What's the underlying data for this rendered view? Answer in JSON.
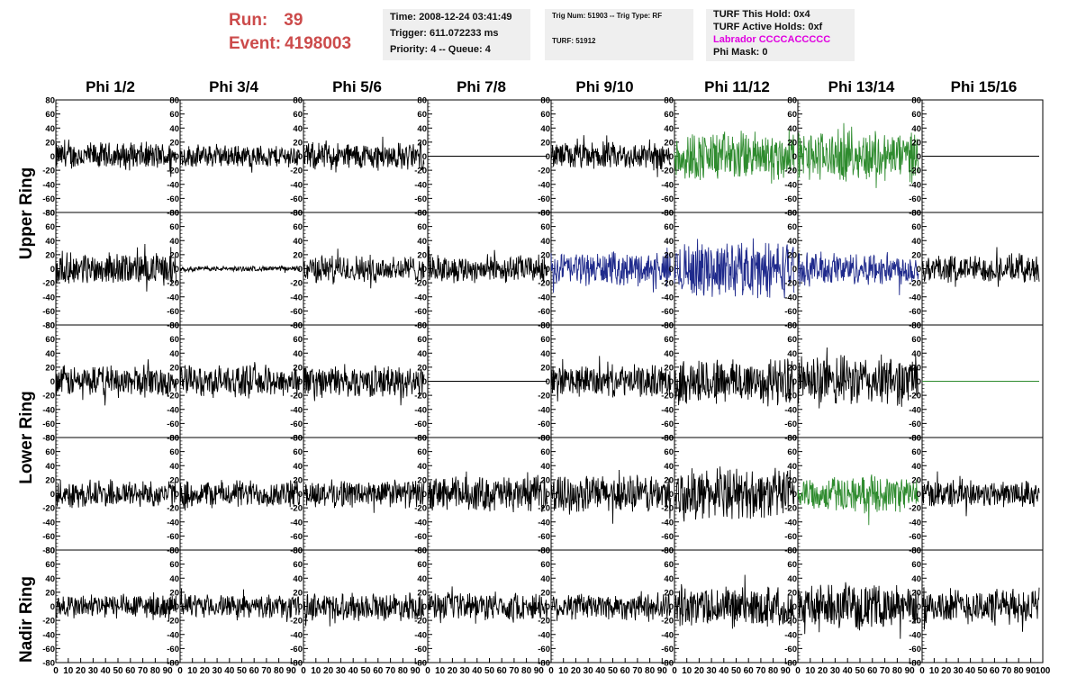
{
  "header": {
    "run_label": "Run:",
    "run_value": "39",
    "event_label": "Event:",
    "event_value": "4198003"
  },
  "box1": {
    "time": "Time: 2008-12-24 03:41:49",
    "trigger": "Trigger: 611.072233 ms",
    "priority": "Priority: 4 -- Queue: 4"
  },
  "box2": {
    "trig": "Trig Num: 51903 -- Trig Type: RF",
    "turf": "TURF: 51912"
  },
  "box3": {
    "hold": "TURF This Hold: 0x4",
    "active": "TURF Active Holds: 0xf",
    "labrador": "Labrador CCCCACCCCC",
    "phimask": "Phi Mask: 0"
  },
  "columns": [
    "Phi 1/2",
    "Phi 3/4",
    "Phi 5/6",
    "Phi 7/8",
    "Phi 9/10",
    "Phi 11/12",
    "Phi 13/14",
    "Phi 15/16"
  ],
  "ring_labels": {
    "upper": "Upper Ring",
    "lower": "Lower Ring",
    "nadir": "Nadir Ring"
  },
  "colors": {
    "run_text": "#cc4b4b",
    "box_bg": "#efefef",
    "labrador": "#e000e0",
    "trace_black": "#000000",
    "trace_green": "#2e8b2e",
    "trace_blue": "#1f2a8c"
  },
  "chart_data": {
    "type": "line",
    "xlim": [
      0,
      100
    ],
    "ylim": [
      -80,
      80
    ],
    "y_ticks": [
      80,
      60,
      40,
      20,
      0,
      -20,
      -40,
      -60,
      -80
    ],
    "x_ticks": [
      0,
      10,
      20,
      30,
      40,
      50,
      60,
      70,
      80,
      90,
      100
    ],
    "panels": [
      [
        {
          "color": "black",
          "amp": 22
        },
        {
          "color": "black",
          "amp": 18
        },
        {
          "color": "black",
          "amp": 22
        },
        {
          "color": "black",
          "amp": 0
        },
        {
          "color": "black",
          "amp": 22
        },
        {
          "color": "green",
          "amp": 40
        },
        {
          "color": "green",
          "amp": 40
        },
        {
          "color": "black",
          "amp": 0
        }
      ],
      [
        {
          "color": "black",
          "amp": 25
        },
        {
          "color": "black",
          "amp": 4
        },
        {
          "color": "black",
          "amp": 22
        },
        {
          "color": "black",
          "amp": 22
        },
        {
          "color": "blue",
          "amp": 26
        },
        {
          "color": "blue",
          "amp": 45
        },
        {
          "color": "blue",
          "amp": 26
        },
        {
          "color": "black",
          "amp": 22
        }
      ],
      [
        {
          "color": "black",
          "amp": 25
        },
        {
          "color": "black",
          "amp": 25
        },
        {
          "color": "black",
          "amp": 25
        },
        {
          "color": "black",
          "amp": 0
        },
        {
          "color": "black",
          "amp": 25
        },
        {
          "color": "black",
          "amp": 38
        },
        {
          "color": "black",
          "amp": 40
        },
        {
          "color": "green",
          "amp": 0
        }
      ],
      [
        {
          "color": "black",
          "amp": 22
        },
        {
          "color": "black",
          "amp": 22
        },
        {
          "color": "black",
          "amp": 22
        },
        {
          "color": "black",
          "amp": 28
        },
        {
          "color": "black",
          "amp": 30
        },
        {
          "color": "black",
          "amp": 40
        },
        {
          "color": "green",
          "amp": 28
        },
        {
          "color": "black",
          "amp": 22
        }
      ],
      [
        {
          "color": "black",
          "amp": 20
        },
        {
          "color": "black",
          "amp": 18
        },
        {
          "color": "black",
          "amp": 22
        },
        {
          "color": "black",
          "amp": 22
        },
        {
          "color": "black",
          "amp": 22
        },
        {
          "color": "black",
          "amp": 32
        },
        {
          "color": "black",
          "amp": 34
        },
        {
          "color": "black",
          "amp": 28
        }
      ]
    ]
  }
}
